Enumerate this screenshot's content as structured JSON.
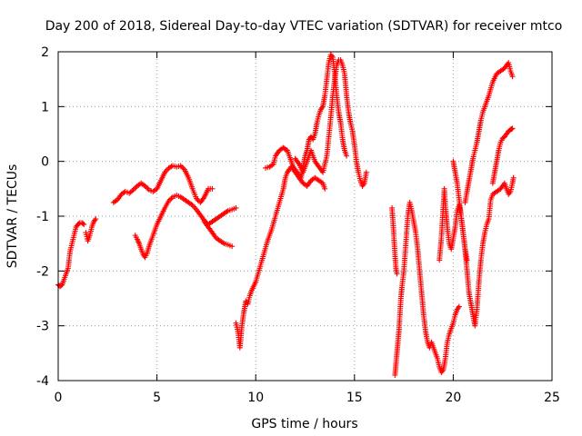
{
  "chart_data": {
    "type": "scatter",
    "title": "Day 200 of 2018, Sidereal Day-to-day VTEC variation (SDTVAR) for receiver mtco",
    "xlabel": "GPS time / hours",
    "ylabel": "SDTVAR / TECUs",
    "xlim": [
      0,
      25
    ],
    "ylim": [
      -4,
      2
    ],
    "xticks": [
      0,
      5,
      10,
      15,
      20,
      25
    ],
    "yticks": [
      -4,
      -3,
      -2,
      -1,
      0,
      1,
      2
    ],
    "grid": true,
    "marker": "plus",
    "color": "#ff0000",
    "segments": [
      [
        [
          0.0,
          -2.25
        ],
        [
          0.1,
          -2.28
        ],
        [
          0.2,
          -2.25
        ],
        [
          0.3,
          -2.15
        ],
        [
          0.4,
          -2.05
        ],
        [
          0.5,
          -1.95
        ],
        [
          0.55,
          -1.8
        ],
        [
          0.6,
          -1.65
        ],
        [
          0.7,
          -1.5
        ],
        [
          0.8,
          -1.35
        ],
        [
          0.9,
          -1.2
        ],
        [
          1.0,
          -1.15
        ],
        [
          1.1,
          -1.12
        ],
        [
          1.2,
          -1.12
        ],
        [
          1.3,
          -1.15
        ]
      ],
      [
        [
          1.4,
          -1.3
        ],
        [
          1.5,
          -1.45
        ],
        [
          1.6,
          -1.35
        ],
        [
          1.7,
          -1.2
        ],
        [
          1.8,
          -1.1
        ],
        [
          1.9,
          -1.05
        ]
      ],
      [
        [
          2.8,
          -0.75
        ],
        [
          3.0,
          -0.7
        ],
        [
          3.2,
          -0.6
        ],
        [
          3.4,
          -0.55
        ],
        [
          3.6,
          -0.58
        ],
        [
          3.8,
          -0.52
        ],
        [
          4.0,
          -0.45
        ],
        [
          4.2,
          -0.4
        ],
        [
          4.4,
          -0.45
        ],
        [
          4.6,
          -0.52
        ],
        [
          4.8,
          -0.55
        ],
        [
          5.0,
          -0.5
        ],
        [
          5.2,
          -0.35
        ],
        [
          5.4,
          -0.2
        ],
        [
          5.6,
          -0.12
        ],
        [
          5.8,
          -0.08
        ],
        [
          6.0,
          -0.1
        ],
        [
          6.2,
          -0.08
        ],
        [
          6.4,
          -0.15
        ],
        [
          6.6,
          -0.3
        ],
        [
          6.8,
          -0.5
        ],
        [
          7.0,
          -0.68
        ],
        [
          7.2,
          -0.75
        ],
        [
          7.4,
          -0.65
        ],
        [
          7.6,
          -0.5
        ],
        [
          7.8,
          -0.5
        ]
      ],
      [
        [
          3.9,
          -1.35
        ],
        [
          4.0,
          -1.42
        ],
        [
          4.1,
          -1.5
        ],
        [
          4.2,
          -1.6
        ],
        [
          4.3,
          -1.7
        ],
        [
          4.4,
          -1.75
        ],
        [
          4.5,
          -1.68
        ],
        [
          4.6,
          -1.55
        ],
        [
          4.8,
          -1.35
        ],
        [
          5.0,
          -1.15
        ],
        [
          5.2,
          -1.0
        ],
        [
          5.4,
          -0.85
        ],
        [
          5.6,
          -0.72
        ],
        [
          5.8,
          -0.65
        ],
        [
          6.0,
          -0.62
        ],
        [
          6.2,
          -0.65
        ],
        [
          6.4,
          -0.7
        ],
        [
          6.6,
          -0.75
        ],
        [
          6.8,
          -0.8
        ],
        [
          7.0,
          -0.88
        ],
        [
          7.2,
          -0.98
        ],
        [
          7.4,
          -1.08
        ],
        [
          7.6,
          -1.15
        ],
        [
          7.8,
          -1.1
        ],
        [
          8.0,
          -1.05
        ],
        [
          8.2,
          -1.0
        ],
        [
          8.4,
          -0.95
        ],
        [
          8.6,
          -0.9
        ],
        [
          8.8,
          -0.88
        ],
        [
          9.0,
          -0.85
        ]
      ],
      [
        [
          7.4,
          -1.1
        ],
        [
          7.6,
          -1.2
        ],
        [
          7.8,
          -1.3
        ],
        [
          8.0,
          -1.4
        ],
        [
          8.2,
          -1.45
        ],
        [
          8.4,
          -1.5
        ],
        [
          8.6,
          -1.52
        ],
        [
          8.8,
          -1.55
        ]
      ],
      [
        [
          9.0,
          -2.95
        ],
        [
          9.1,
          -3.1
        ],
        [
          9.15,
          -3.25
        ],
        [
          9.2,
          -3.4
        ],
        [
          9.3,
          -3.0
        ],
        [
          9.4,
          -2.75
        ],
        [
          9.5,
          -2.55
        ],
        [
          9.6,
          -2.6
        ],
        [
          9.7,
          -2.45
        ],
        [
          9.8,
          -2.35
        ],
        [
          10.0,
          -2.2
        ],
        [
          10.2,
          -1.95
        ],
        [
          10.4,
          -1.7
        ],
        [
          10.6,
          -1.45
        ],
        [
          10.8,
          -1.25
        ],
        [
          11.0,
          -1.0
        ],
        [
          11.2,
          -0.75
        ],
        [
          11.4,
          -0.5
        ],
        [
          11.5,
          -0.3
        ],
        [
          11.6,
          -0.2
        ],
        [
          11.8,
          -0.1
        ],
        [
          12.0,
          -0.2
        ],
        [
          12.2,
          -0.3
        ],
        [
          12.4,
          -0.4
        ],
        [
          12.6,
          -0.45
        ],
        [
          12.8,
          -0.35
        ],
        [
          13.0,
          -0.3
        ],
        [
          13.2,
          -0.35
        ],
        [
          13.4,
          -0.4
        ],
        [
          13.5,
          -0.5
        ]
      ],
      [
        [
          10.5,
          -0.12
        ],
        [
          10.7,
          -0.1
        ],
        [
          10.9,
          -0.05
        ],
        [
          11.0,
          0.1
        ],
        [
          11.2,
          0.2
        ],
        [
          11.4,
          0.25
        ],
        [
          11.5,
          0.22
        ],
        [
          11.6,
          0.2
        ],
        [
          11.7,
          0.1
        ],
        [
          11.8,
          0.0
        ],
        [
          11.9,
          -0.1
        ],
        [
          12.0,
          -0.15
        ],
        [
          12.1,
          -0.2
        ],
        [
          12.2,
          -0.25
        ],
        [
          12.3,
          -0.3
        ],
        [
          12.4,
          -0.1
        ],
        [
          12.5,
          0.1
        ],
        [
          12.6,
          0.2
        ],
        [
          12.7,
          0.4
        ],
        [
          12.8,
          0.45
        ],
        [
          12.9,
          0.4
        ],
        [
          13.0,
          0.5
        ],
        [
          13.1,
          0.7
        ],
        [
          13.2,
          0.85
        ],
        [
          13.3,
          0.95
        ],
        [
          13.4,
          1.0
        ],
        [
          13.5,
          1.2
        ],
        [
          13.6,
          1.5
        ],
        [
          13.7,
          1.8
        ],
        [
          13.8,
          1.95
        ],
        [
          13.9,
          1.9
        ],
        [
          14.0,
          1.6
        ],
        [
          14.1,
          1.2
        ],
        [
          14.2,
          0.9
        ],
        [
          14.3,
          0.7
        ],
        [
          14.4,
          0.4
        ],
        [
          14.5,
          0.2
        ],
        [
          14.6,
          0.1
        ]
      ],
      [
        [
          12.0,
          0.05
        ],
        [
          12.2,
          -0.05
        ],
        [
          12.4,
          -0.2
        ],
        [
          12.6,
          0.0
        ],
        [
          12.8,
          0.2
        ],
        [
          13.0,
          0.0
        ],
        [
          13.2,
          -0.1
        ],
        [
          13.4,
          -0.2
        ],
        [
          13.6,
          0.1
        ],
        [
          13.8,
          0.8
        ],
        [
          13.9,
          1.2
        ],
        [
          14.0,
          1.5
        ],
        [
          14.1,
          1.75
        ],
        [
          14.2,
          1.85
        ],
        [
          14.3,
          1.85
        ],
        [
          14.4,
          1.75
        ],
        [
          14.5,
          1.6
        ],
        [
          14.6,
          1.2
        ],
        [
          14.7,
          0.9
        ],
        [
          14.8,
          0.7
        ],
        [
          14.9,
          0.55
        ],
        [
          15.0,
          0.3
        ],
        [
          15.1,
          0.0
        ],
        [
          15.2,
          -0.2
        ],
        [
          15.3,
          -0.35
        ],
        [
          15.4,
          -0.45
        ],
        [
          15.5,
          -0.4
        ],
        [
          15.6,
          -0.2
        ]
      ],
      [
        [
          16.9,
          -0.85
        ],
        [
          16.95,
          -1.1
        ],
        [
          17.0,
          -1.4
        ],
        [
          17.05,
          -1.7
        ],
        [
          17.1,
          -1.95
        ],
        [
          17.15,
          -2.05
        ]
      ],
      [
        [
          17.05,
          -3.9
        ],
        [
          17.1,
          -3.7
        ],
        [
          17.15,
          -3.5
        ],
        [
          17.2,
          -3.3
        ],
        [
          17.25,
          -3.1
        ],
        [
          17.3,
          -2.8
        ],
        [
          17.35,
          -2.5
        ],
        [
          17.4,
          -2.3
        ],
        [
          17.5,
          -2.0
        ],
        [
          17.6,
          -1.5
        ],
        [
          17.7,
          -1.0
        ],
        [
          17.8,
          -0.75
        ],
        [
          17.9,
          -0.9
        ],
        [
          18.0,
          -1.1
        ],
        [
          18.1,
          -1.3
        ],
        [
          18.2,
          -1.6
        ],
        [
          18.3,
          -2.0
        ],
        [
          18.4,
          -2.4
        ],
        [
          18.5,
          -2.8
        ],
        [
          18.6,
          -3.1
        ],
        [
          18.7,
          -3.3
        ],
        [
          18.8,
          -3.4
        ],
        [
          18.9,
          -3.3
        ],
        [
          19.0,
          -3.4
        ],
        [
          19.1,
          -3.5
        ],
        [
          19.2,
          -3.6
        ],
        [
          19.3,
          -3.75
        ],
        [
          19.4,
          -3.85
        ],
        [
          19.5,
          -3.8
        ],
        [
          19.6,
          -3.6
        ],
        [
          19.7,
          -3.3
        ],
        [
          19.8,
          -3.15
        ],
        [
          19.9,
          -3.05
        ],
        [
          20.0,
          -2.95
        ],
        [
          20.1,
          -2.8
        ],
        [
          20.2,
          -2.7
        ],
        [
          20.3,
          -2.65
        ]
      ],
      [
        [
          19.3,
          -1.8
        ],
        [
          19.4,
          -1.4
        ],
        [
          19.45,
          -1.1
        ],
        [
          19.5,
          -0.8
        ],
        [
          19.55,
          -0.5
        ],
        [
          19.6,
          -0.8
        ],
        [
          19.7,
          -1.2
        ],
        [
          19.8,
          -1.5
        ],
        [
          19.9,
          -1.6
        ],
        [
          20.0,
          -1.4
        ],
        [
          20.1,
          -1.2
        ],
        [
          20.2,
          -0.9
        ],
        [
          20.3,
          -0.8
        ],
        [
          20.4,
          -1.0
        ],
        [
          20.5,
          -1.3
        ],
        [
          20.6,
          -1.6
        ],
        [
          20.7,
          -1.8
        ]
      ],
      [
        [
          20.0,
          0.0
        ],
        [
          20.1,
          -0.2
        ],
        [
          20.2,
          -0.4
        ],
        [
          20.3,
          -0.7
        ],
        [
          20.4,
          -1.0
        ],
        [
          20.5,
          -1.3
        ],
        [
          20.6,
          -1.6
        ],
        [
          20.7,
          -2.0
        ],
        [
          20.8,
          -2.4
        ],
        [
          20.9,
          -2.6
        ],
        [
          21.0,
          -2.8
        ],
        [
          21.1,
          -3.0
        ],
        [
          21.2,
          -2.7
        ],
        [
          21.3,
          -2.2
        ],
        [
          21.4,
          -1.8
        ],
        [
          21.5,
          -1.5
        ],
        [
          21.6,
          -1.3
        ],
        [
          21.7,
          -1.15
        ],
        [
          21.8,
          -1.05
        ],
        [
          21.9,
          -0.7
        ],
        [
          22.0,
          -0.6
        ],
        [
          22.2,
          -0.55
        ],
        [
          22.4,
          -0.5
        ],
        [
          22.6,
          -0.4
        ],
        [
          22.8,
          -0.6
        ],
        [
          22.9,
          -0.55
        ],
        [
          23.0,
          -0.4
        ],
        [
          23.05,
          -0.3
        ]
      ],
      [
        [
          20.6,
          -0.75
        ],
        [
          20.7,
          -0.55
        ],
        [
          20.8,
          -0.35
        ],
        [
          20.9,
          -0.15
        ],
        [
          21.0,
          0.05
        ],
        [
          21.1,
          0.2
        ],
        [
          21.2,
          0.35
        ],
        [
          21.3,
          0.55
        ],
        [
          21.4,
          0.75
        ],
        [
          21.5,
          0.9
        ],
        [
          21.6,
          1.0
        ],
        [
          21.8,
          1.2
        ],
        [
          22.0,
          1.45
        ],
        [
          22.2,
          1.6
        ],
        [
          22.4,
          1.65
        ],
        [
          22.6,
          1.7
        ],
        [
          22.7,
          1.75
        ],
        [
          22.8,
          1.8
        ],
        [
          22.9,
          1.65
        ],
        [
          23.0,
          1.55
        ]
      ],
      [
        [
          22.0,
          -0.4
        ],
        [
          22.1,
          -0.2
        ],
        [
          22.2,
          0.0
        ],
        [
          22.3,
          0.2
        ],
        [
          22.4,
          0.35
        ],
        [
          22.5,
          0.42
        ],
        [
          22.6,
          0.45
        ],
        [
          22.7,
          0.5
        ],
        [
          22.8,
          0.55
        ],
        [
          22.9,
          0.58
        ],
        [
          23.0,
          0.6
        ]
      ]
    ]
  }
}
